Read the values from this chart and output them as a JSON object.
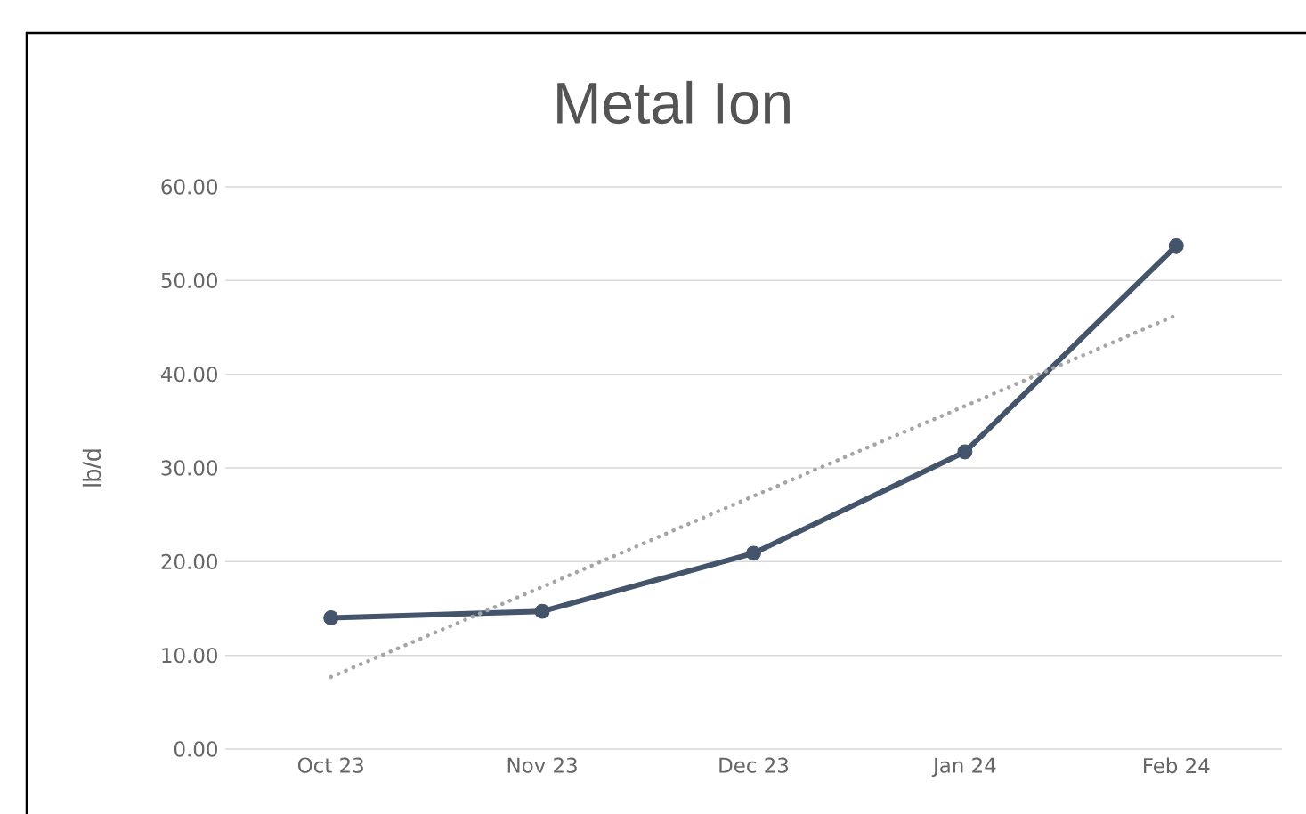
{
  "chart_data": {
    "type": "line",
    "title": "Metal Ion",
    "ylabel": "lb/d",
    "categories": [
      "Oct 23",
      "Nov 23",
      "Dec 23",
      "Jan 24",
      "Feb 24"
    ],
    "series": [
      {
        "color": "#44546a",
        "values": [
          14.0,
          14.7,
          20.9,
          31.7,
          53.7
        ],
        "marker": "circle",
        "line_style": "solid"
      },
      {
        "type": "line",
        "color": "#a5a5a5",
        "values": [
          7.7,
          17.3,
          27.0,
          36.6,
          46.3
        ],
        "marker": "none",
        "line_style": "dotted"
      }
    ],
    "ylim": [
      0,
      60
    ],
    "yticks": [
      {
        "value": 0,
        "label": "0.00"
      },
      {
        "value": 10,
        "label": "10.00"
      },
      {
        "value": 20,
        "label": "20.00"
      },
      {
        "value": 30,
        "label": "30.00"
      },
      {
        "value": 40,
        "label": "40.00"
      },
      {
        "value": 50,
        "label": "50.00"
      },
      {
        "value": 60,
        "label": "60.00"
      }
    ],
    "grid": "y"
  }
}
